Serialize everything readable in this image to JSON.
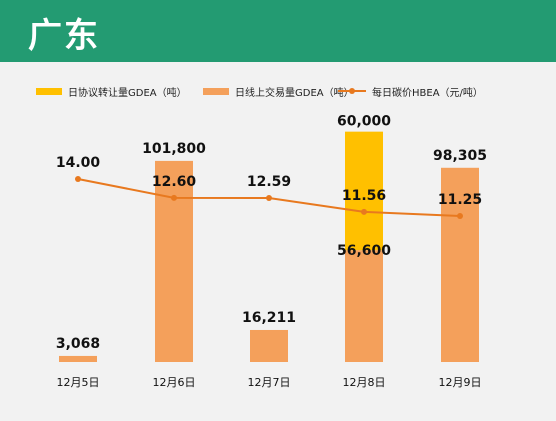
{
  "header": {
    "title": "广东"
  },
  "colors": {
    "header_bg": "#239b72",
    "agreement": "#ffc000",
    "online": "#f4a05b",
    "price": "#e8791f"
  },
  "chart_data": {
    "type": "bar+line",
    "title": "",
    "categories": [
      "12月5日",
      "12月6日",
      "12月7日",
      "12月8日",
      "12月9日"
    ],
    "series": [
      {
        "name": "日协议转让量GDEA（吨）",
        "type": "bar",
        "stacked": true,
        "values": [
          0,
          0,
          0,
          60000,
          0
        ],
        "labels": [
          "",
          "",
          "",
          "60,000",
          ""
        ]
      },
      {
        "name": "日线上交易量GDEA（吨）",
        "type": "bar",
        "stacked": true,
        "values": [
          3068,
          101800,
          16211,
          56600,
          98305
        ],
        "labels": [
          "3,068",
          "101,800",
          "16,211",
          "56,600",
          "98,305"
        ]
      },
      {
        "name": "每日碳价HBEA（元/吨）",
        "type": "line",
        "values": [
          14.0,
          12.6,
          12.59,
          11.56,
          11.25
        ],
        "labels": [
          "14.00",
          "12.60",
          "12.59",
          "11.56",
          "11.25"
        ]
      }
    ],
    "legend_position": "top",
    "grid": false
  }
}
